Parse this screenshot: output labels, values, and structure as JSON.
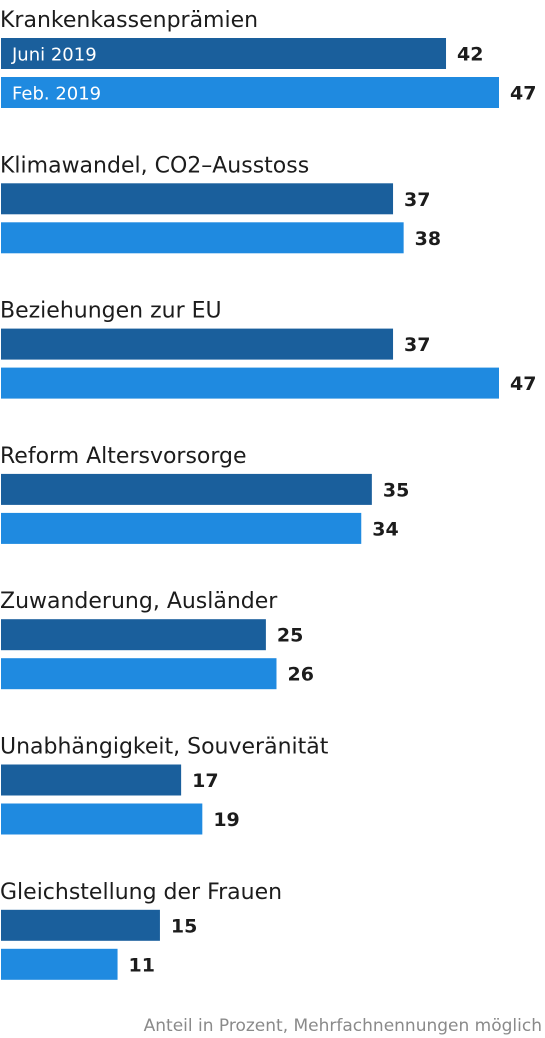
{
  "chart_data": {
    "type": "bar",
    "orientation": "horizontal",
    "categories": [
      "Krankenkassenprämien",
      "Klimawandel, CO2–Ausstoss",
      "Beziehungen zur EU",
      "Reform Altersvorsorge",
      "Zuwanderung, Ausländer",
      "Unabhängigkeit, Souveränität",
      "Gleichstellung der Frauen"
    ],
    "series": [
      {
        "name": "Juni 2019",
        "color": "#1a5f9c",
        "values": [
          42,
          37,
          37,
          35,
          25,
          17,
          15
        ]
      },
      {
        "name": "Feb. 2019",
        "color": "#1f8ae0",
        "values": [
          47,
          38,
          47,
          34,
          26,
          19,
          11
        ]
      }
    ],
    "legend_placement": "inside-first-bars",
    "xlim": [
      0,
      47
    ],
    "grid": false,
    "footnote": "Anteil in Prozent, Mehrfachnennungen möglich"
  }
}
